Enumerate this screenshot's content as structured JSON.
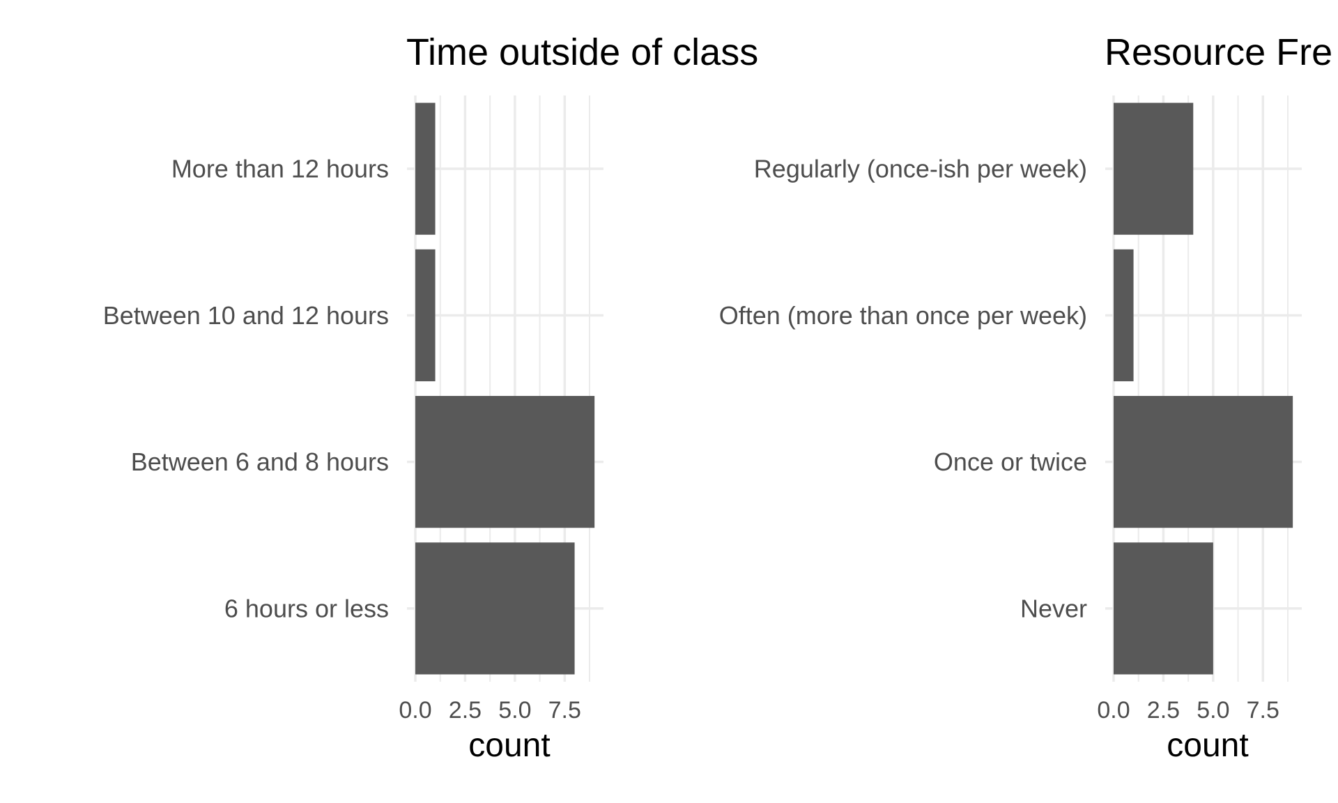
{
  "chart_data": [
    {
      "type": "bar",
      "orientation": "horizontal",
      "title": "Time outside of class",
      "xlabel": "count",
      "ylabel": "",
      "categories": [
        "More than 12 hours",
        "Between 10 and 12 hours",
        "Between 6 and 8 hours",
        "6 hours or less"
      ],
      "values": [
        1,
        1,
        9,
        8
      ],
      "xticks": [
        "0.0",
        "2.5",
        "5.0",
        "7.5"
      ],
      "xlim": [
        0,
        9.45
      ],
      "grid": true,
      "bar_color": "#595959"
    },
    {
      "type": "bar",
      "orientation": "horizontal",
      "title": "Resource Fre",
      "xlabel": "count",
      "ylabel": "",
      "categories": [
        "Regularly (once-ish per week)",
        "Often (more than once per week)",
        "Once or twice",
        "Never"
      ],
      "values": [
        4,
        1,
        9,
        5
      ],
      "xticks": [
        "0.0",
        "2.5",
        "5.0",
        "7.5"
      ],
      "xlim": [
        0,
        9.45
      ],
      "grid": true,
      "bar_color": "#595959"
    }
  ]
}
